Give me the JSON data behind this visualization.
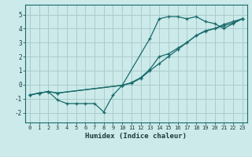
{
  "background_color": "#cceaea",
  "grid_color": "#aacccc",
  "line_color": "#1a6b6b",
  "xlabel": "Humidex (Indice chaleur)",
  "xlim": [
    -0.5,
    23.5
  ],
  "ylim": [
    -2.7,
    5.7
  ],
  "yticks": [
    -2,
    -1,
    0,
    1,
    2,
    3,
    4,
    5
  ],
  "xticks": [
    0,
    1,
    2,
    3,
    4,
    5,
    6,
    7,
    8,
    9,
    10,
    11,
    12,
    13,
    14,
    15,
    16,
    17,
    18,
    19,
    20,
    21,
    22,
    23
  ],
  "line1_x": [
    0,
    1,
    2,
    3,
    4,
    5,
    6,
    7,
    8,
    9,
    10,
    11,
    12,
    13,
    14,
    15,
    16,
    17,
    18,
    19,
    20,
    21,
    22,
    23
  ],
  "line1_y": [
    -0.75,
    -0.6,
    -0.5,
    -1.1,
    -1.35,
    -1.35,
    -1.35,
    -1.35,
    -1.95,
    -0.75,
    -0.05,
    0.1,
    0.45,
    1.0,
    1.5,
    2.0,
    2.5,
    3.0,
    3.5,
    3.85,
    4.0,
    4.3,
    4.5,
    4.7
  ],
  "line2_x": [
    0,
    1,
    2,
    3,
    10,
    13,
    14,
    15,
    16,
    17,
    18,
    19,
    20,
    21,
    22,
    23
  ],
  "line2_y": [
    -0.75,
    -0.6,
    -0.5,
    -0.6,
    -0.05,
    3.3,
    4.7,
    4.85,
    4.85,
    4.7,
    4.85,
    4.5,
    4.35,
    4.0,
    4.35,
    4.7
  ],
  "line3_x": [
    0,
    1,
    2,
    3,
    10,
    11,
    12,
    13,
    14,
    15,
    16,
    17,
    18,
    19,
    20,
    21,
    22,
    23
  ],
  "line3_y": [
    -0.75,
    -0.6,
    -0.5,
    -0.6,
    -0.05,
    0.15,
    0.5,
    1.1,
    2.0,
    2.2,
    2.6,
    3.0,
    3.5,
    3.8,
    4.0,
    4.2,
    4.4,
    4.7
  ]
}
